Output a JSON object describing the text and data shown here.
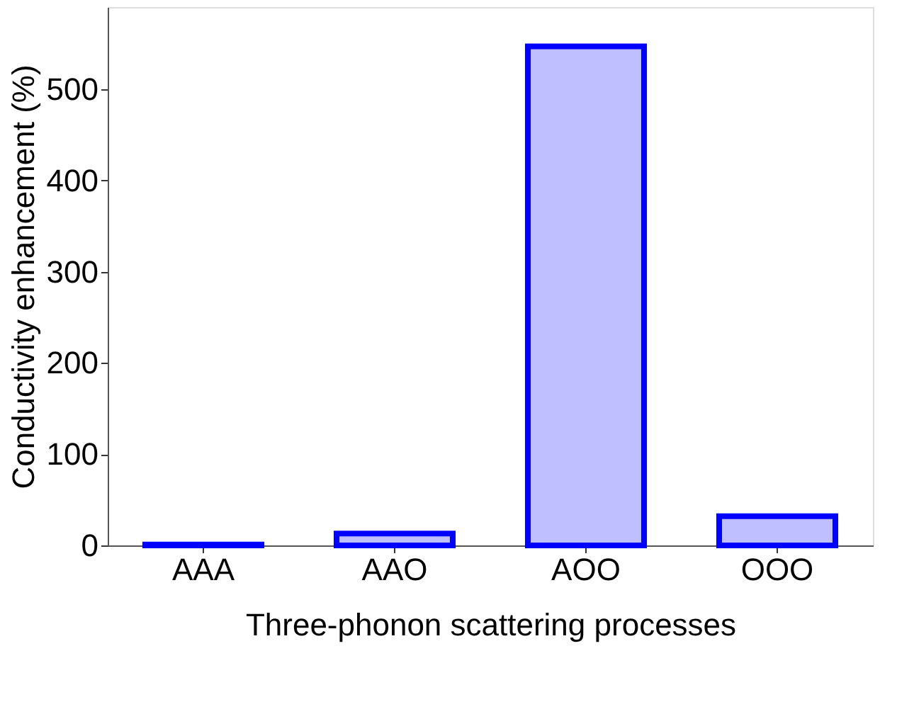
{
  "chart_data": {
    "type": "bar",
    "categories": [
      "AAA",
      "AAO",
      "AOO",
      "OOO"
    ],
    "values": [
      1,
      13,
      547,
      32
    ],
    "color": "#0000ff",
    "xlabel": "Three-phonon scattering processes",
    "ylabel": "Conductivity enhancement (%)",
    "ylim": [
      0,
      590
    ],
    "yticks": [
      0,
      100,
      200,
      300,
      400,
      500
    ],
    "grid": false
  }
}
